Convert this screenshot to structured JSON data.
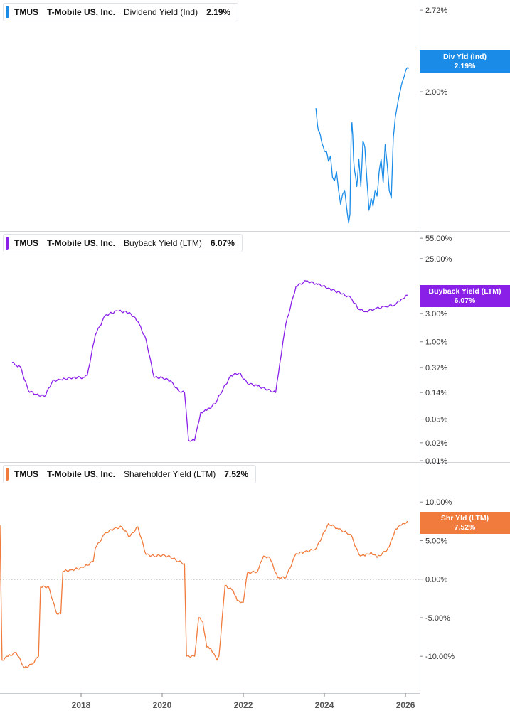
{
  "chart_data": [
    {
      "type": "line",
      "ticker": "TMUS",
      "company": "T-Mobile US, Inc.",
      "metric": "Dividend Yield (Ind)",
      "current_value": "2.19%",
      "tag_label": "Div Yld (Ind)",
      "color": "#1a8ce8",
      "y_scale": "log",
      "ylim": [
        1.2,
        2.75
      ],
      "y_ticks": [
        {
          "v": 2.0,
          "label": "2.00%"
        },
        {
          "v": 2.72,
          "label": "2.72%"
        }
      ],
      "series": [
        {
          "x": [
            2023.79,
            2023.81,
            2023.85,
            2023.9,
            2023.95,
            2024.0,
            2024.05,
            2024.1,
            2024.15,
            2024.2,
            2024.25,
            2024.3,
            2024.35,
            2024.4,
            2024.45,
            2024.5,
            2024.55,
            2024.6,
            2024.63,
            2024.66,
            2024.68,
            2024.7,
            2024.72,
            2024.75,
            2024.8,
            2024.85,
            2024.9,
            2024.95,
            2025.0,
            2025.05,
            2025.1,
            2025.15,
            2025.2,
            2025.25,
            2025.3,
            2025.35,
            2025.4,
            2025.45,
            2025.5,
            2025.55,
            2025.6,
            2025.65,
            2025.7,
            2025.75,
            2025.8,
            2025.85,
            2025.9,
            2025.95,
            2026.0,
            2026.05,
            2026.08
          ],
          "y": [
            1.88,
            1.82,
            1.73,
            1.7,
            1.64,
            1.6,
            1.6,
            1.54,
            1.57,
            1.45,
            1.43,
            1.48,
            1.38,
            1.31,
            1.36,
            1.38,
            1.29,
            1.22,
            1.26,
            1.7,
            1.78,
            1.7,
            1.55,
            1.48,
            1.4,
            1.55,
            1.4,
            1.66,
            1.62,
            1.43,
            1.28,
            1.34,
            1.3,
            1.38,
            1.35,
            1.48,
            1.55,
            1.42,
            1.64,
            1.52,
            1.38,
            1.34,
            1.68,
            1.82,
            1.9,
            1.98,
            2.05,
            2.1,
            2.16,
            2.19,
            2.19
          ]
        }
      ]
    },
    {
      "type": "line",
      "ticker": "TMUS",
      "company": "T-Mobile US, Inc.",
      "metric": "Buyback Yield (LTM)",
      "current_value": "6.07%",
      "tag_label": "Buyback Yield (LTM)",
      "color": "#8a1fe8",
      "y_scale": "log",
      "ylim": [
        0.01,
        60
      ],
      "y_ticks": [
        {
          "v": 55,
          "label": "55.00%"
        },
        {
          "v": 25,
          "label": "25.00%"
        },
        {
          "v": 3,
          "label": "3.00%"
        },
        {
          "v": 1,
          "label": "1.00%"
        },
        {
          "v": 0.37,
          "label": "0.37%"
        },
        {
          "v": 0.14,
          "label": "0.14%"
        },
        {
          "v": 0.05,
          "label": "0.05%"
        },
        {
          "v": 0.02,
          "label": "0.02%"
        },
        {
          "v": 0.01,
          "label": "0.01%"
        }
      ],
      "series": [
        {
          "x": [
            2016.3,
            2016.4,
            2016.5,
            2016.7,
            2016.9,
            2017.1,
            2017.3,
            2017.5,
            2017.8,
            2018.05,
            2018.15,
            2018.35,
            2018.6,
            2018.9,
            2019.2,
            2019.4,
            2019.6,
            2019.8,
            2020.0,
            2020.2,
            2020.4,
            2020.55,
            2020.65,
            2020.8,
            2020.95,
            2021.1,
            2021.3,
            2021.5,
            2021.7,
            2021.9,
            2022.1,
            2022.35,
            2022.55,
            2022.8,
            2022.9,
            2023.05,
            2023.3,
            2023.55,
            2023.8,
            2024.1,
            2024.4,
            2024.65,
            2024.85,
            2025.0,
            2025.25,
            2025.5,
            2025.75,
            2025.9,
            2026.05
          ],
          "y": [
            0.45,
            0.4,
            0.38,
            0.15,
            0.13,
            0.12,
            0.22,
            0.23,
            0.25,
            0.25,
            0.27,
            1.3,
            2.8,
            3.3,
            3.1,
            2.2,
            1.1,
            0.25,
            0.25,
            0.22,
            0.15,
            0.14,
            0.022,
            0.022,
            0.065,
            0.07,
            0.09,
            0.16,
            0.27,
            0.3,
            0.2,
            0.18,
            0.16,
            0.14,
            0.43,
            2.0,
            8.5,
            10.5,
            9.5,
            8.0,
            6.5,
            5.5,
            3.5,
            3.2,
            3.6,
            3.9,
            4.2,
            5.2,
            6.07
          ]
        }
      ]
    },
    {
      "type": "line",
      "ticker": "TMUS",
      "company": "T-Mobile US, Inc.",
      "metric": "Shareholder Yield (LTM)",
      "current_value": "7.52%",
      "tag_label": "Shr Yld (LTM)",
      "color": "#f07b3c",
      "y_scale": "linear",
      "ylim": [
        -14.5,
        15
      ],
      "zero_line": true,
      "y_ticks": [
        {
          "v": 10,
          "label": "10.00%"
        },
        {
          "v": 5,
          "label": "5.00%"
        },
        {
          "v": 0,
          "label": "0.00%"
        },
        {
          "v": -5,
          "label": "-5.00%"
        },
        {
          "v": -10,
          "label": "-10.00%"
        }
      ],
      "series": [
        {
          "x": [
            2016.0,
            2016.05,
            2016.2,
            2016.4,
            2016.6,
            2016.8,
            2016.95,
            2017.0,
            2017.2,
            2017.4,
            2017.5,
            2017.55,
            2017.75,
            2018.05,
            2018.3,
            2018.35,
            2018.6,
            2018.8,
            2019.0,
            2019.2,
            2019.4,
            2019.6,
            2019.8,
            2020.0,
            2020.2,
            2020.4,
            2020.55,
            2020.6,
            2020.8,
            2020.9,
            2021.0,
            2021.1,
            2021.2,
            2021.35,
            2021.4,
            2021.55,
            2021.75,
            2021.85,
            2022.0,
            2022.1,
            2022.35,
            2022.5,
            2022.65,
            2022.85,
            2023.05,
            2023.3,
            2023.5,
            2023.7,
            2023.8,
            2024.1,
            2024.35,
            2024.55,
            2024.65,
            2024.85,
            2025.0,
            2025.15,
            2025.3,
            2025.5,
            2025.6,
            2025.75,
            2025.9,
            2026.05
          ],
          "y": [
            7.0,
            -10.5,
            -10.0,
            -9.5,
            -11.5,
            -11.0,
            -10.0,
            -1.0,
            -1.0,
            -4.5,
            -4.5,
            1.0,
            1.2,
            1.5,
            2.3,
            4.0,
            6.0,
            6.5,
            6.8,
            5.5,
            6.8,
            3.2,
            3.0,
            3.1,
            2.9,
            2.3,
            2.0,
            -10.0,
            -10.0,
            -5.0,
            -5.5,
            -8.8,
            -9.0,
            -10.5,
            -10.0,
            -0.8,
            -1.5,
            -2.8,
            -3.0,
            0.8,
            1.0,
            3.0,
            2.8,
            0.2,
            0.2,
            3.3,
            3.5,
            3.8,
            4.0,
            7.2,
            6.5,
            6.0,
            5.8,
            3.2,
            3.0,
            3.5,
            2.8,
            3.6,
            4.2,
            6.5,
            7.0,
            7.52
          ]
        }
      ]
    }
  ],
  "x_axis": {
    "range": [
      2016.0,
      2026.35
    ],
    "ticks": [
      2018,
      2020,
      2022,
      2024,
      2026
    ]
  }
}
